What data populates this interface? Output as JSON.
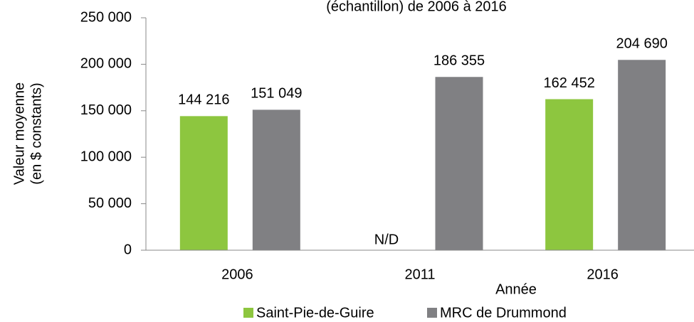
{
  "chart_data": {
    "type": "bar",
    "title": "(échantillon) de 2006 à 2016",
    "x_label": "Année",
    "y_label": [
      "Valeur moyenne",
      "(en $ constants)"
    ],
    "categories": [
      "2006",
      "2011",
      "2016"
    ],
    "series": [
      {
        "name": "Saint-Pie-de-Guire",
        "color": "#8dc63f",
        "values": [
          144216,
          null,
          162452
        ],
        "value_labels": [
          "144 216",
          "N/D",
          "162 452"
        ]
      },
      {
        "name": "MRC de Drummond",
        "color": "#808083",
        "values": [
          151049,
          186355,
          204690
        ],
        "value_labels": [
          "151 049",
          "186 355",
          "204 690"
        ]
      }
    ],
    "ylim": [
      0,
      250000
    ],
    "yticks": [
      0,
      {
        "value": 50000,
        "label": "50 000"
      },
      {
        "value": 100000,
        "label": "100 000"
      },
      {
        "value": 150000,
        "label": "150 000"
      },
      {
        "value": 200000,
        "label": "200 000"
      },
      {
        "value": 250000,
        "label": "250 000"
      }
    ],
    "grid": false,
    "legend": "bottom"
  }
}
